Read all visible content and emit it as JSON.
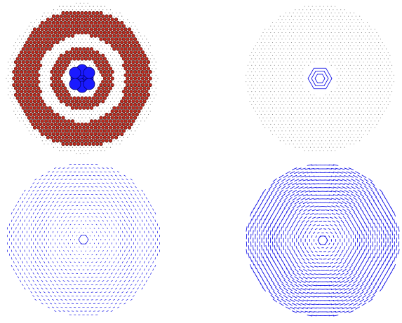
{
  "colors": {
    "background": "#ffffff",
    "lattice_site": "#7a7a7a",
    "ring_atom_fill": "#c0281c",
    "ring_atom_stroke": "#3a0a05",
    "core_atom_fill": "#1a1aff",
    "core_atom_stroke": "#000070",
    "displacement_arrow": "#1414e6"
  },
  "panels": [
    {
      "id": "top-left",
      "content": "lattice-with-highlighted-atom-rings-and-core"
    },
    {
      "id": "top-right",
      "content": "lattice-with-small-core-displacement-field"
    },
    {
      "id": "bottom-left",
      "content": "weak-displacement-field"
    },
    {
      "id": "bottom-right",
      "content": "strong-displacement-field"
    }
  ]
}
